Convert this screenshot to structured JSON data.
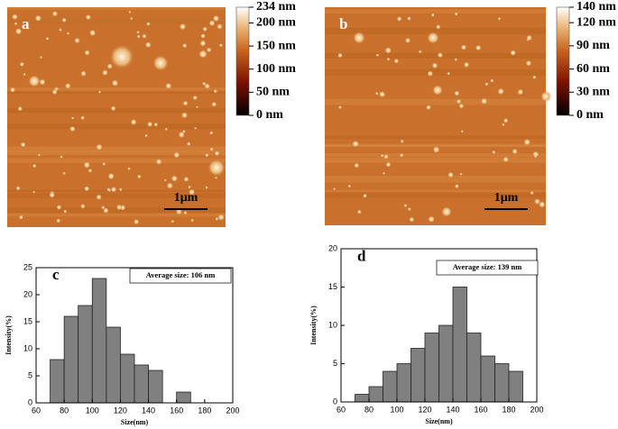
{
  "panels": [
    {
      "label": "a",
      "scale_bar": "1μm",
      "colorbar": {
        "lim": [
          0,
          234
        ],
        "ticks": [
          {
            "value": 234,
            "label": "234 nm"
          },
          {
            "value": 200,
            "label": "200 nm"
          },
          {
            "value": 150,
            "label": "150 nm"
          },
          {
            "value": 100,
            "label": "100 nm"
          },
          {
            "value": 50,
            "label": "50 nm"
          },
          {
            "value": 0,
            "label": "0 nm"
          }
        ]
      }
    },
    {
      "label": "b",
      "scale_bar": "1μm",
      "colorbar": {
        "lim": [
          0,
          140
        ],
        "ticks": [
          {
            "value": 140,
            "label": "140 nm"
          },
          {
            "value": 120,
            "label": "120 nm"
          },
          {
            "value": 90,
            "label": "90 nm"
          },
          {
            "value": 60,
            "label": "60 nm"
          },
          {
            "value": 30,
            "label": "30 nm"
          },
          {
            "value": 0,
            "label": "0 nm"
          }
        ]
      }
    }
  ],
  "chart_data": [
    {
      "type": "histogram",
      "panel_label": "c",
      "annotation": "Average size: 106 nm",
      "x_label": "Size(nm)",
      "y_label": "Intensity(%)",
      "bins": [
        70,
        80,
        90,
        100,
        110,
        120,
        130,
        140,
        150,
        160,
        170
      ],
      "values": [
        8,
        16,
        18,
        23,
        14,
        9,
        7,
        6,
        0,
        2
      ],
      "color": "#808080",
      "xlim": [
        60,
        200
      ],
      "xticks": [
        60,
        80,
        100,
        120,
        140,
        160,
        180,
        200
      ],
      "ylim": [
        0,
        25
      ],
      "yticks": [
        0,
        5,
        10,
        15,
        20,
        25
      ]
    },
    {
      "type": "histogram",
      "panel_label": "d",
      "annotation": "Average size: 139 nm",
      "x_label": "Size(nm)",
      "y_label": "Intensity(%)",
      "bins": [
        70,
        80,
        90,
        100,
        110,
        120,
        130,
        140,
        150,
        160,
        170,
        180,
        190
      ],
      "values": [
        1,
        2,
        4,
        5,
        7,
        9,
        10,
        15,
        9,
        6,
        5,
        4
      ],
      "color": "#808080",
      "xlim": [
        60,
        200
      ],
      "xticks": [
        60,
        80,
        100,
        120,
        140,
        160,
        180,
        200
      ],
      "ylim": [
        0,
        20
      ],
      "yticks": [
        0,
        5,
        10,
        15,
        20
      ]
    }
  ]
}
